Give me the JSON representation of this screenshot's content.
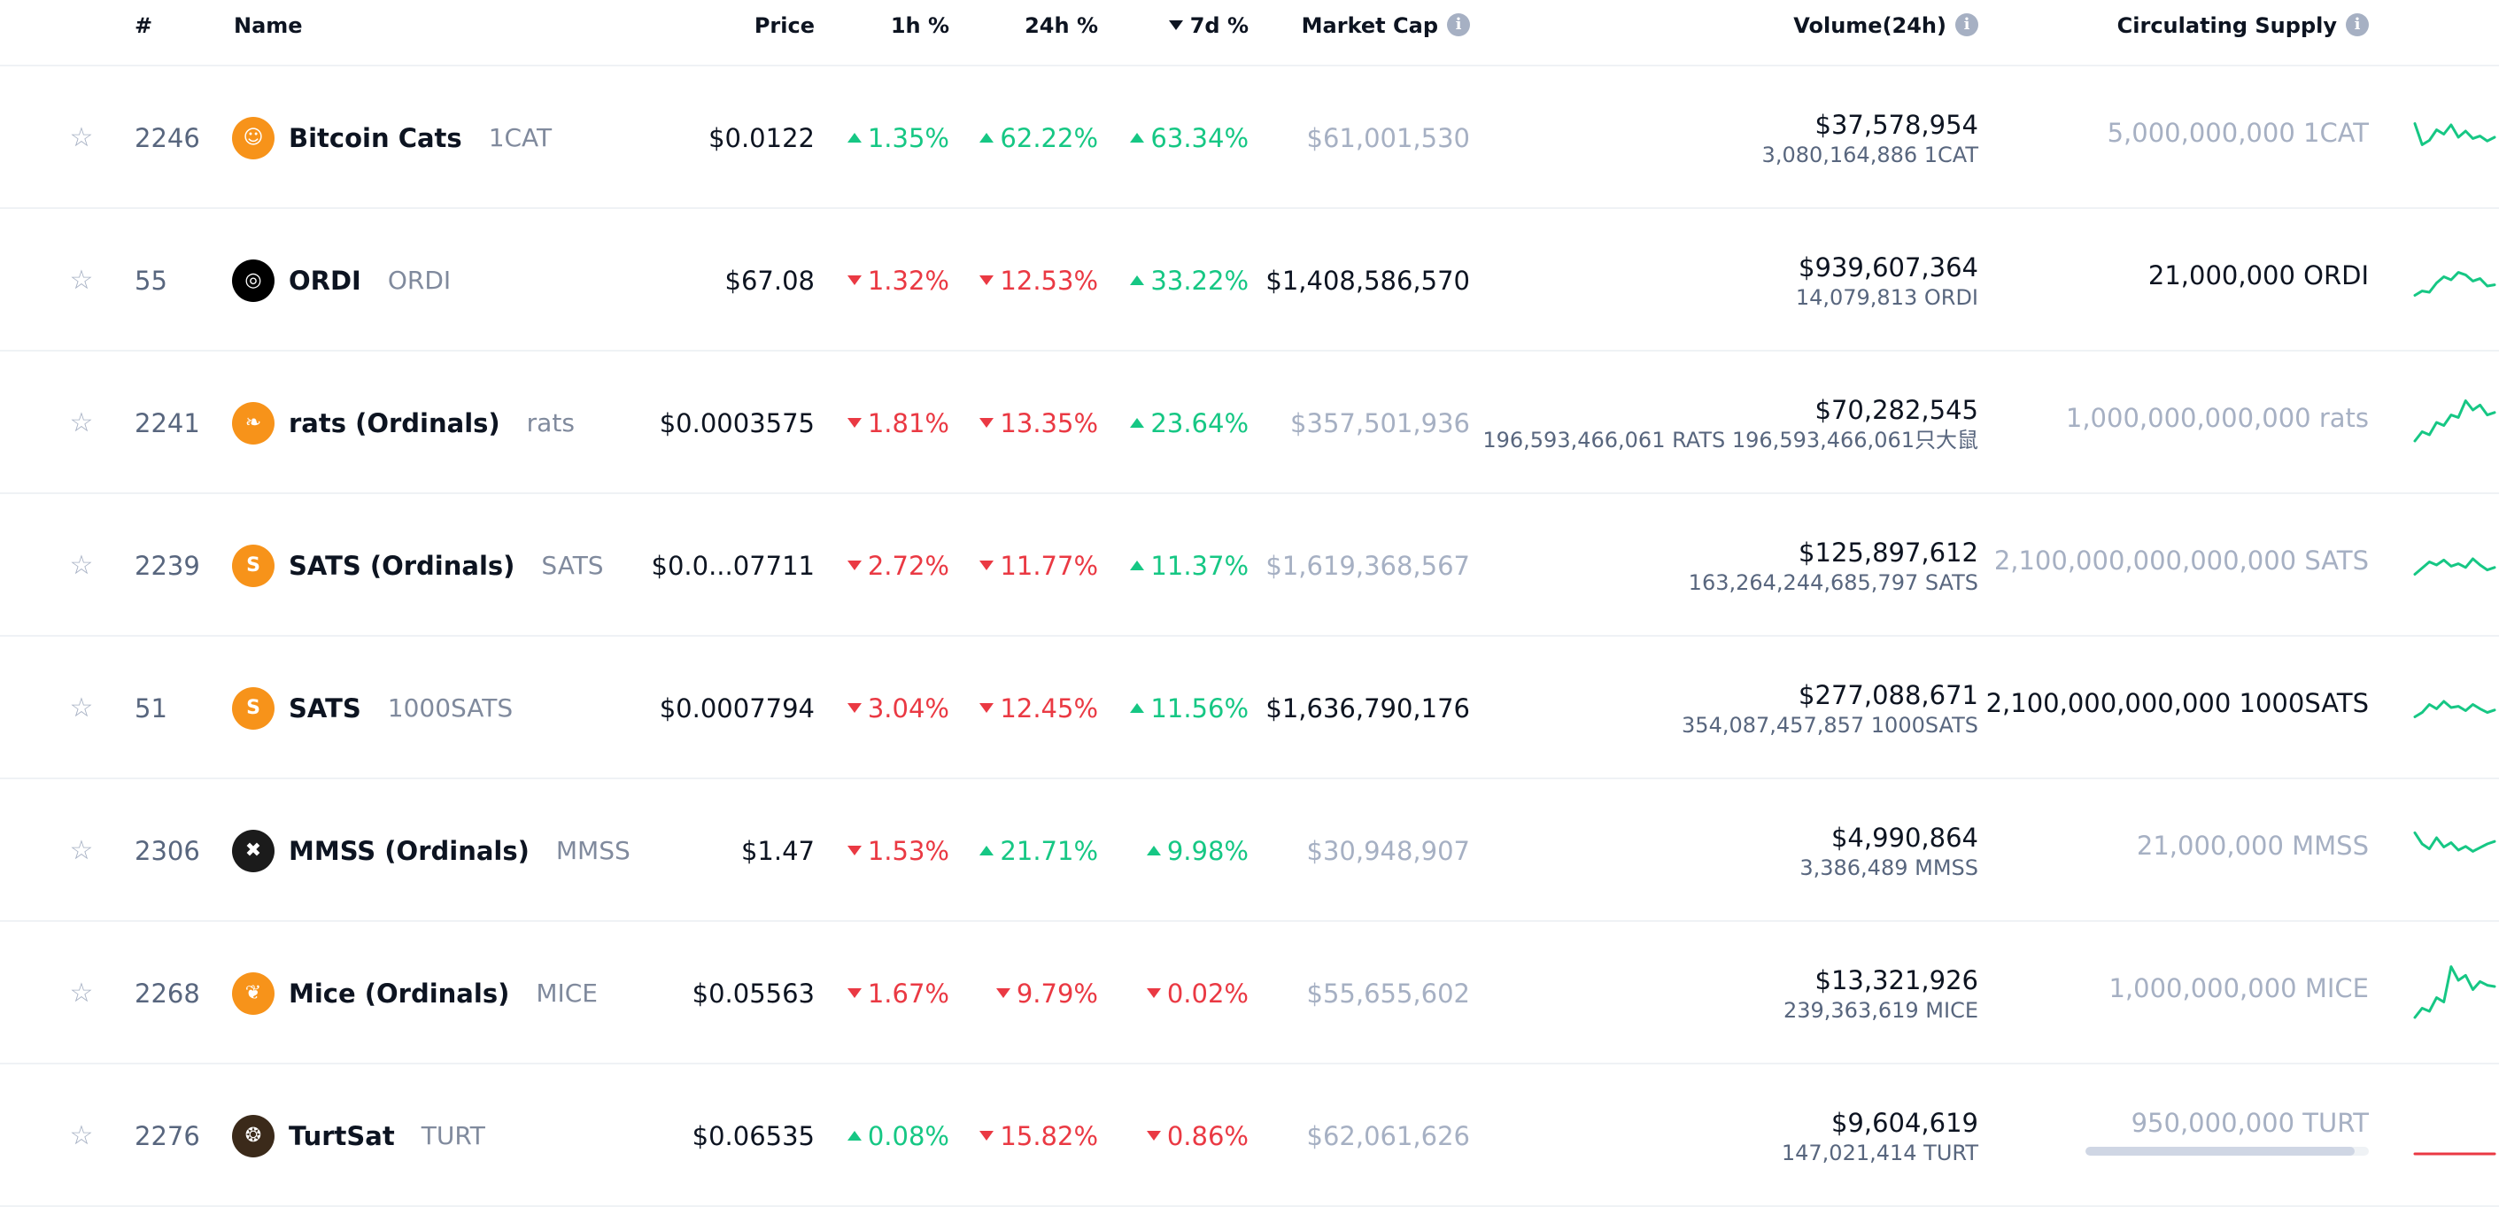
{
  "columns": {
    "rank": "#",
    "name": "Name",
    "price": "Price",
    "h1": "1h %",
    "h24": "24h %",
    "d7": "7d %",
    "market_cap": "Market Cap",
    "volume": "Volume(24h)",
    "supply": "Circulating Supply"
  },
  "icons": {
    "star": "star-outline-icon",
    "info": "info-icon",
    "sort": "sort-descending-icon"
  },
  "colors": {
    "up": "#16c784",
    "down": "#ea3943",
    "muted": "#a6b0c3",
    "text": "#0d1421"
  },
  "rows": [
    {
      "rank": "2246",
      "name": "Bitcoin Cats",
      "symbol": "1CAT",
      "logo_icon": "cat-face-icon",
      "logo_color": "#f7931a",
      "price": "$0.0122",
      "h1": "1.35%",
      "h1_dir": "up",
      "h24": "62.22%",
      "h24_dir": "up",
      "d7": "63.34%",
      "d7_dir": "up",
      "market_cap": "$61,001,530",
      "market_cap_faded": true,
      "volume_usd": "$37,578,954",
      "volume_coin": "3,080,164,886 1CAT",
      "supply": "5,000,000,000 1CAT",
      "supply_faded": true,
      "spark_color": "#16c784",
      "spark": [
        0.72,
        0.38,
        0.45,
        0.62,
        0.55,
        0.7,
        0.5,
        0.6,
        0.48,
        0.52,
        0.44,
        0.5
      ]
    },
    {
      "rank": "55",
      "name": "ORDI",
      "symbol": "ORDI",
      "logo_icon": "ordi-logo-icon",
      "logo_color": "#000000",
      "price": "$67.08",
      "h1": "1.32%",
      "h1_dir": "down",
      "h24": "12.53%",
      "h24_dir": "down",
      "d7": "33.22%",
      "d7_dir": "up",
      "market_cap": "$1,408,586,570",
      "market_cap_faded": false,
      "volume_usd": "$939,607,364",
      "volume_coin": "14,079,813 ORDI",
      "supply": "21,000,000 ORDI",
      "supply_faded": false,
      "spark_color": "#16c784",
      "spark": [
        0.25,
        0.32,
        0.3,
        0.45,
        0.55,
        0.5,
        0.62,
        0.58,
        0.48,
        0.52,
        0.4,
        0.42
      ]
    },
    {
      "rank": "2241",
      "name": "rats (Ordinals)",
      "symbol": "rats",
      "logo_icon": "rat-icon",
      "logo_color": "#f7931a",
      "price": "$0.0003575",
      "h1": "1.81%",
      "h1_dir": "down",
      "h24": "13.35%",
      "h24_dir": "down",
      "d7": "23.64%",
      "d7_dir": "up",
      "market_cap": "$357,501,936",
      "market_cap_faded": true,
      "volume_usd": "$70,282,545",
      "volume_coin": "196,593,466,061 RATS 196,593,466,061只大鼠",
      "supply": "1,000,000,000,000 rats",
      "supply_faded": true,
      "spark_color": "#16c784",
      "spark": [
        0.2,
        0.35,
        0.3,
        0.5,
        0.45,
        0.62,
        0.58,
        0.85,
        0.7,
        0.78,
        0.62,
        0.66
      ]
    },
    {
      "rank": "2239",
      "name": "SATS (Ordinals)",
      "symbol": "SATS",
      "logo_icon": "sats-coin-icon",
      "logo_color": "#f7931a",
      "price": "$0.0...07711",
      "h1": "2.72%",
      "h1_dir": "down",
      "h24": "11.77%",
      "h24_dir": "down",
      "d7": "11.37%",
      "d7_dir": "up",
      "market_cap": "$1,619,368,567",
      "market_cap_faded": true,
      "volume_usd": "$125,897,612",
      "volume_coin": "163,264,244,685,797 SATS",
      "supply": "2,100,000,000,000,000 SATS",
      "supply_faded": true,
      "spark_color": "#16c784",
      "spark": [
        0.35,
        0.45,
        0.55,
        0.5,
        0.58,
        0.48,
        0.52,
        0.46,
        0.6,
        0.5,
        0.42,
        0.46
      ]
    },
    {
      "rank": "51",
      "name": "SATS",
      "symbol": "1000SATS",
      "logo_icon": "sats-coin-icon",
      "logo_color": "#f7931a",
      "price": "$0.0007794",
      "h1": "3.04%",
      "h1_dir": "down",
      "h24": "12.45%",
      "h24_dir": "down",
      "d7": "11.56%",
      "d7_dir": "up",
      "market_cap": "$1,636,790,176",
      "market_cap_faded": false,
      "volume_usd": "$277,088,671",
      "volume_coin": "354,087,457,857 1000SATS",
      "supply": "2,100,000,000,000 1000SATS",
      "supply_faded": false,
      "spark_color": "#16c784",
      "spark": [
        0.35,
        0.42,
        0.55,
        0.48,
        0.6,
        0.5,
        0.52,
        0.45,
        0.55,
        0.48,
        0.42,
        0.46
      ]
    },
    {
      "rank": "2306",
      "name": "MMSS (Ordinals)",
      "symbol": "MMSS",
      "logo_icon": "mmss-logo-icon",
      "logo_color": "#1b1b1b",
      "price": "$1.47",
      "h1": "1.53%",
      "h1_dir": "down",
      "h24": "21.71%",
      "h24_dir": "up",
      "d7": "9.98%",
      "d7_dir": "up",
      "market_cap": "$30,948,907",
      "market_cap_faded": true,
      "volume_usd": "$4,990,864",
      "volume_coin": "3,386,489 MMSS",
      "supply": "21,000,000 MMSS",
      "supply_faded": true,
      "spark_color": "#16c784",
      "spark": [
        0.78,
        0.6,
        0.52,
        0.7,
        0.55,
        0.62,
        0.5,
        0.56,
        0.48,
        0.54,
        0.6,
        0.64
      ]
    },
    {
      "rank": "2268",
      "name": "Mice (Ordinals)",
      "symbol": "MICE",
      "logo_icon": "mouse-icon",
      "logo_color": "#f7931a",
      "price": "$0.05563",
      "h1": "1.67%",
      "h1_dir": "down",
      "h24": "9.79%",
      "h24_dir": "down",
      "d7": "0.02%",
      "d7_dir": "down",
      "market_cap": "$55,655,602",
      "market_cap_faded": true,
      "volume_usd": "$13,321,926",
      "volume_coin": "239,363,619 MICE",
      "supply": "1,000,000,000 MICE",
      "supply_faded": true,
      "spark_color": "#16c784",
      "spark": [
        0.1,
        0.25,
        0.2,
        0.42,
        0.35,
        0.92,
        0.7,
        0.78,
        0.55,
        0.68,
        0.62,
        0.6
      ]
    },
    {
      "rank": "2276",
      "name": "TurtSat",
      "symbol": "TURT",
      "logo_icon": "turtle-icon",
      "logo_color": "#3b2a1a",
      "price": "$0.06535",
      "h1": "0.08%",
      "h1_dir": "up",
      "h24": "15.82%",
      "h24_dir": "down",
      "d7": "0.86%",
      "d7_dir": "down",
      "market_cap": "$62,061,626",
      "market_cap_faded": true,
      "volume_usd": "$9,604,619",
      "volume_coin": "147,021,414 TURT",
      "supply": "950,000,000 TURT",
      "supply_faded": true,
      "supply_progress": 0.95,
      "spark_color": "#ea3943",
      "spark": [
        0.2,
        0.2,
        0.2,
        0.2,
        0.2,
        0.2,
        0.2,
        0.2,
        0.2,
        0.2,
        0.2,
        0.2
      ]
    }
  ]
}
